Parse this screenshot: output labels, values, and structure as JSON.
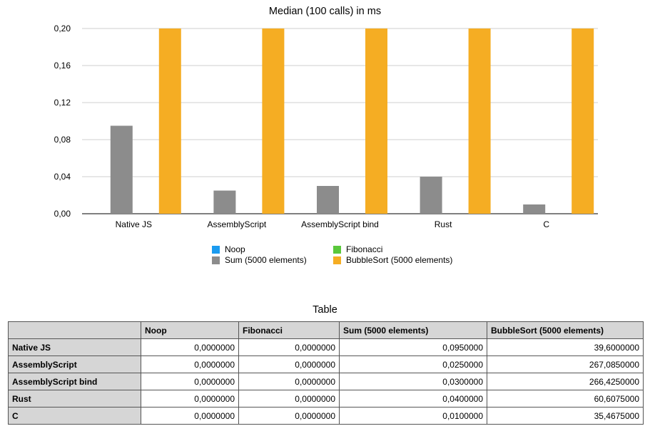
{
  "chart_data": {
    "type": "bar",
    "title": "Median (100 calls) in ms",
    "categories": [
      "Native JS",
      "AssemblyScript",
      "AssemblyScript bind",
      "Rust",
      "C"
    ],
    "series": [
      {
        "name": "Noop",
        "color": "#1a9bf0",
        "values": [
          0,
          0,
          0,
          0,
          0
        ]
      },
      {
        "name": "Sum (5000 elements)",
        "color": "#8c8c8c",
        "values": [
          0.095,
          0.025,
          0.03,
          0.04,
          0.01
        ]
      },
      {
        "name": "Fibonacci",
        "color": "#5ac83c",
        "values": [
          0,
          0,
          0,
          0,
          0
        ]
      },
      {
        "name": "BubbleSort (5000 elements)",
        "color": "#f5ad23",
        "values": [
          39.6,
          267.085,
          266.425,
          60.6075,
          35.4675
        ]
      }
    ],
    "ylim": [
      0,
      0.2
    ],
    "yticks": [
      "0,00",
      "0,04",
      "0,08",
      "0,12",
      "0,16",
      "0,20"
    ],
    "xlabel": "",
    "ylabel": "",
    "grid": true,
    "legend_position": "bottom"
  },
  "legend": {
    "noop": "Noop",
    "fibonacci": "Fibonacci",
    "sum": "Sum (5000 elements)",
    "bubblesort": "BubbleSort (5000 elements)"
  },
  "table": {
    "title": "Table",
    "columns": [
      "",
      "Noop",
      "Fibonacci",
      "Sum (5000 elements)",
      "BubbleSort (5000 elements)"
    ],
    "rows": [
      {
        "label": "Native JS",
        "values": [
          "0,0000000",
          "0,0000000",
          "0,0950000",
          "39,6000000"
        ]
      },
      {
        "label": "AssemblyScript",
        "values": [
          "0,0000000",
          "0,0000000",
          "0,0250000",
          "267,0850000"
        ]
      },
      {
        "label": "AssemblyScript bind",
        "values": [
          "0,0000000",
          "0,0000000",
          "0,0300000",
          "266,4250000"
        ]
      },
      {
        "label": "Rust",
        "values": [
          "0,0000000",
          "0,0000000",
          "0,0400000",
          "60,6075000"
        ]
      },
      {
        "label": "C",
        "values": [
          "0,0000000",
          "0,0000000",
          "0,0100000",
          "35,4675000"
        ]
      }
    ]
  }
}
